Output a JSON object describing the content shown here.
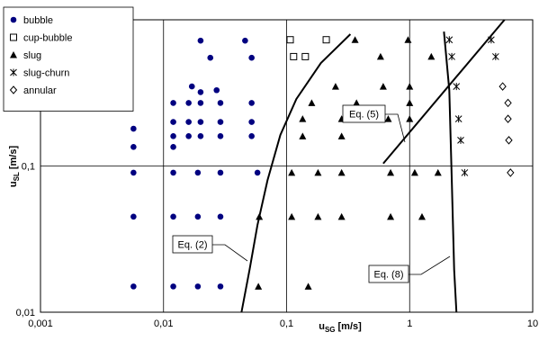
{
  "chart_data": {
    "type": "scatter",
    "xlabel": {
      "text": "u",
      "sub": "SG",
      "unit": "[m/s]"
    },
    "ylabel": {
      "text": "u",
      "sub": "SL",
      "unit": "[m/s]"
    },
    "xscale": "log",
    "yscale": "log",
    "xlim": [
      0.001,
      10
    ],
    "ylim": [
      0.01,
      1
    ],
    "xticks": [
      {
        "value": 0.001,
        "label": "0,001"
      },
      {
        "value": 0.01,
        "label": "0,01"
      },
      {
        "value": 0.1,
        "label": "0,1"
      },
      1,
      10
    ],
    "yticks": [
      {
        "value": 0.01,
        "label": "0,01"
      },
      {
        "value": 0.1,
        "label": "0,1"
      },
      1
    ],
    "grid": true,
    "legend": "top-left",
    "series": [
      {
        "name": "bubble",
        "marker": "circle",
        "color": "#000080",
        "x": [
          0.0057,
          0.0057,
          0.0057,
          0.0057,
          0.0057,
          0.012,
          0.012,
          0.012,
          0.012,
          0.012,
          0.012,
          0.012,
          0.016,
          0.016,
          0.016,
          0.019,
          0.019,
          0.019,
          0.017,
          0.02,
          0.024,
          0.02,
          0.027,
          0.02,
          0.02,
          0.02,
          0.029,
          0.029,
          0.029,
          0.029,
          0.029,
          0.029,
          0.046,
          0.052,
          0.052,
          0.052,
          0.052,
          0.058
        ],
        "values": [
          0.18,
          0.135,
          0.09,
          0.045,
          0.015,
          0.27,
          0.2,
          0.16,
          0.135,
          0.09,
          0.045,
          0.015,
          0.27,
          0.2,
          0.16,
          0.09,
          0.045,
          0.015,
          0.35,
          0.72,
          0.55,
          0.32,
          0.33,
          0.27,
          0.2,
          0.16,
          0.27,
          0.2,
          0.16,
          0.09,
          0.045,
          0.015,
          0.72,
          0.55,
          0.27,
          0.2,
          0.16,
          0.09
        ]
      },
      {
        "name": "cup-bubble",
        "marker": "square",
        "color": "#000000",
        "x": [
          0.107,
          0.21,
          0.114,
          0.142
        ],
        "values": [
          0.73,
          0.73,
          0.56,
          0.56
        ]
      },
      {
        "name": "slug",
        "marker": "triangle",
        "color": "#000000",
        "x": [
          0.36,
          0.97,
          0.58,
          1.5,
          0.25,
          0.61,
          1.0,
          0.16,
          0.37,
          1.0,
          0.135,
          0.28,
          0.67,
          1.0,
          0.135,
          0.28,
          0.11,
          0.18,
          0.28,
          0.7,
          1.1,
          1.7,
          0.06,
          0.11,
          0.18,
          0.28,
          0.7,
          1.26,
          0.059,
          0.15
        ],
        "values": [
          0.73,
          0.73,
          0.56,
          0.56,
          0.35,
          0.35,
          0.35,
          0.27,
          0.27,
          0.27,
          0.21,
          0.21,
          0.21,
          0.21,
          0.16,
          0.16,
          0.09,
          0.09,
          0.09,
          0.09,
          0.09,
          0.09,
          0.045,
          0.045,
          0.045,
          0.045,
          0.045,
          0.045,
          0.015,
          0.015
        ]
      },
      {
        "name": "slug-churn",
        "marker": "asterisk",
        "color": "#000000",
        "x": [
          2.1,
          2.2,
          2.4,
          2.5,
          2.6,
          2.8,
          4.6,
          5.0
        ],
        "values": [
          0.73,
          0.56,
          0.35,
          0.21,
          0.15,
          0.09,
          0.73,
          0.56
        ]
      },
      {
        "name": "annular",
        "marker": "diamond",
        "color": "#000000",
        "x": [
          5.7,
          6.3,
          6.3,
          6.4,
          6.6
        ],
        "values": [
          0.35,
          0.27,
          0.21,
          0.15,
          0.09
        ]
      },
      {
        "name": "Eq. (2)",
        "marker": "line",
        "color": "#000000",
        "x": [
          0.043,
          0.05,
          0.058,
          0.07,
          0.089,
          0.12,
          0.19,
          0.33
        ],
        "values": [
          0.01,
          0.0195,
          0.0395,
          0.08,
          0.163,
          0.287,
          0.506,
          0.797
        ]
      },
      {
        "name": "Eq. (5)",
        "marker": "line",
        "color": "#000000",
        "x": [
          0.61,
          5.9
        ],
        "values": [
          0.104,
          1.0
        ]
      },
      {
        "name": "Eq. (8)",
        "marker": "line",
        "color": "#000000",
        "x": [
          1.9,
          2.1,
          2.2,
          2.3,
          2.4
        ],
        "values": [
          0.83,
          0.33,
          0.08,
          0.0195,
          0.01
        ]
      }
    ]
  }
}
